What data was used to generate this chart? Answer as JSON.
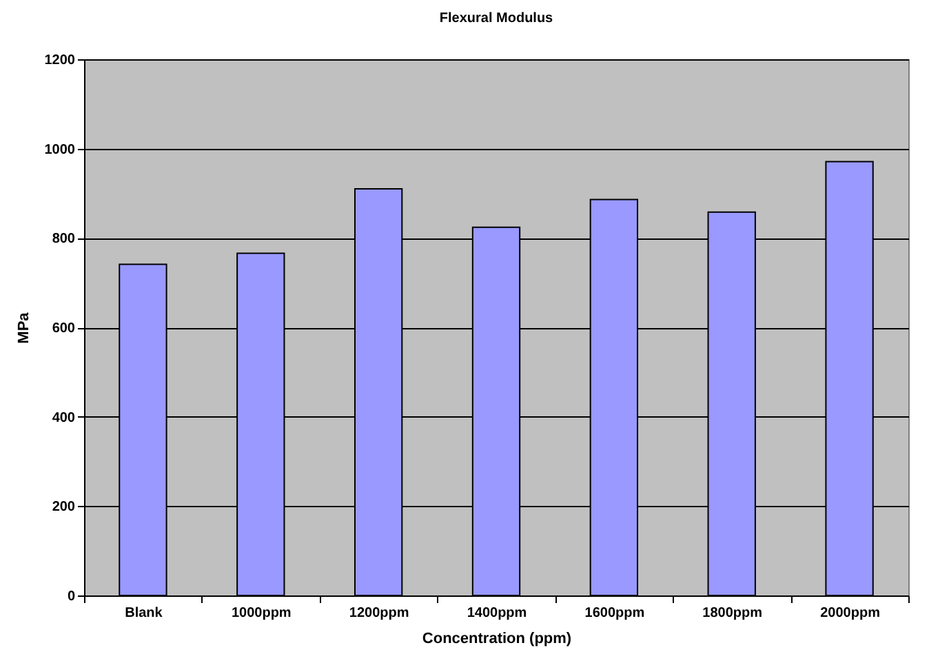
{
  "chart_data": {
    "type": "bar",
    "title": "Flexural Modulus",
    "xlabel": "Concentration (ppm)",
    "ylabel": "MPa",
    "categories": [
      "Blank",
      "1000ppm",
      "1200ppm",
      "1400ppm",
      "1600ppm",
      "1800ppm",
      "2000ppm"
    ],
    "values": [
      741,
      766,
      910,
      824,
      886,
      858,
      971
    ],
    "color": "#9999ff",
    "ylim": [
      0,
      1200
    ],
    "yticks": [
      0,
      200,
      400,
      600,
      800,
      1000,
      1200
    ],
    "grid": "y"
  }
}
